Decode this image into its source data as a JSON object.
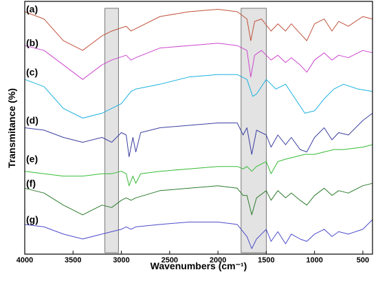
{
  "chart_data": {
    "type": "line",
    "xlabel": "Wavenumbers (cm⁻¹)",
    "ylabel": "Transmitance (%)",
    "xlim": [
      4000,
      400
    ],
    "x_reversed": true,
    "x_ticks": [
      4000,
      3500,
      3000,
      2500,
      2000,
      1500,
      1000,
      500
    ],
    "grid": false,
    "highlight_bands": [
      {
        "x_from": 3170,
        "x_to": 3030
      },
      {
        "x_from": 1760,
        "x_to": 1500
      }
    ],
    "y_units": "stacked, offset transmittance (no numeric scale shown)",
    "series": [
      {
        "name": "(a)",
        "color": "#c0503a",
        "baseline": 0.96,
        "points": [
          [
            4000,
            0.98
          ],
          [
            3800,
            0.95
          ],
          [
            3600,
            0.86
          ],
          [
            3400,
            0.82
          ],
          [
            3200,
            0.88
          ],
          [
            3100,
            0.9
          ],
          [
            2950,
            0.92
          ],
          [
            2900,
            0.9
          ],
          [
            2850,
            0.91
          ],
          [
            2600,
            0.96
          ],
          [
            2300,
            0.98
          ],
          [
            2000,
            0.99
          ],
          [
            1800,
            0.98
          ],
          [
            1700,
            0.95
          ],
          [
            1660,
            0.86
          ],
          [
            1620,
            0.94
          ],
          [
            1550,
            0.95
          ],
          [
            1450,
            0.9
          ],
          [
            1380,
            0.93
          ],
          [
            1300,
            0.9
          ],
          [
            1240,
            0.93
          ],
          [
            1150,
            0.89
          ],
          [
            1080,
            0.86
          ],
          [
            1000,
            0.93
          ],
          [
            900,
            0.95
          ],
          [
            820,
            0.9
          ],
          [
            750,
            0.94
          ],
          [
            650,
            0.92
          ],
          [
            500,
            0.96
          ],
          [
            400,
            0.95
          ]
        ]
      },
      {
        "name": "(b)",
        "color": "#cc44cc",
        "baseline": 0.82,
        "points": [
          [
            4000,
            0.84
          ],
          [
            3800,
            0.82
          ],
          [
            3600,
            0.76
          ],
          [
            3400,
            0.7
          ],
          [
            3200,
            0.76
          ],
          [
            3100,
            0.78
          ],
          [
            2950,
            0.8
          ],
          [
            2900,
            0.78
          ],
          [
            2850,
            0.79
          ],
          [
            2600,
            0.83
          ],
          [
            2300,
            0.84
          ],
          [
            2000,
            0.85
          ],
          [
            1800,
            0.84
          ],
          [
            1700,
            0.82
          ],
          [
            1660,
            0.71
          ],
          [
            1620,
            0.8
          ],
          [
            1550,
            0.82
          ],
          [
            1450,
            0.78
          ],
          [
            1380,
            0.8
          ],
          [
            1300,
            0.77
          ],
          [
            1240,
            0.79
          ],
          [
            1150,
            0.76
          ],
          [
            1080,
            0.73
          ],
          [
            1000,
            0.78
          ],
          [
            900,
            0.81
          ],
          [
            820,
            0.78
          ],
          [
            750,
            0.8
          ],
          [
            650,
            0.79
          ],
          [
            500,
            0.82
          ],
          [
            400,
            0.81
          ]
        ]
      },
      {
        "name": "(c)",
        "color": "#1ab0e0",
        "baseline": 0.7,
        "points": [
          [
            4000,
            0.7
          ],
          [
            3800,
            0.67
          ],
          [
            3600,
            0.58
          ],
          [
            3400,
            0.54
          ],
          [
            3200,
            0.56
          ],
          [
            3100,
            0.58
          ],
          [
            3000,
            0.6
          ],
          [
            2900,
            0.65
          ],
          [
            2850,
            0.66
          ],
          [
            2600,
            0.68
          ],
          [
            2300,
            0.71
          ],
          [
            2000,
            0.72
          ],
          [
            1800,
            0.72
          ],
          [
            1700,
            0.7
          ],
          [
            1640,
            0.63
          ],
          [
            1600,
            0.64
          ],
          [
            1500,
            0.7
          ],
          [
            1400,
            0.66
          ],
          [
            1300,
            0.68
          ],
          [
            1200,
            0.62
          ],
          [
            1100,
            0.56
          ],
          [
            1000,
            0.57
          ],
          [
            900,
            0.62
          ],
          [
            800,
            0.66
          ],
          [
            700,
            0.68
          ],
          [
            550,
            0.66
          ],
          [
            400,
            0.65
          ]
        ]
      },
      {
        "name": "(d)",
        "color": "#3a3ea0",
        "baseline": 0.5,
        "points": [
          [
            4000,
            0.5
          ],
          [
            3800,
            0.49
          ],
          [
            3600,
            0.46
          ],
          [
            3400,
            0.44
          ],
          [
            3200,
            0.46
          ],
          [
            3100,
            0.44
          ],
          [
            3000,
            0.48
          ],
          [
            2950,
            0.47
          ],
          [
            2920,
            0.38
          ],
          [
            2880,
            0.46
          ],
          [
            2850,
            0.4
          ],
          [
            2800,
            0.48
          ],
          [
            2600,
            0.5
          ],
          [
            2300,
            0.51
          ],
          [
            2000,
            0.52
          ],
          [
            1800,
            0.52
          ],
          [
            1740,
            0.47
          ],
          [
            1700,
            0.5
          ],
          [
            1650,
            0.39
          ],
          [
            1600,
            0.49
          ],
          [
            1500,
            0.47
          ],
          [
            1450,
            0.42
          ],
          [
            1380,
            0.47
          ],
          [
            1300,
            0.43
          ],
          [
            1240,
            0.46
          ],
          [
            1150,
            0.41
          ],
          [
            1080,
            0.4
          ],
          [
            1000,
            0.46
          ],
          [
            900,
            0.5
          ],
          [
            820,
            0.45
          ],
          [
            750,
            0.48
          ],
          [
            650,
            0.47
          ],
          [
            500,
            0.53
          ],
          [
            400,
            0.56
          ]
        ]
      },
      {
        "name": "(e)",
        "color": "#33bb33",
        "baseline": 0.34,
        "points": [
          [
            4000,
            0.32
          ],
          [
            3800,
            0.31
          ],
          [
            3600,
            0.3
          ],
          [
            3400,
            0.3
          ],
          [
            3200,
            0.31
          ],
          [
            3100,
            0.31
          ],
          [
            3000,
            0.32
          ],
          [
            2950,
            0.31
          ],
          [
            2920,
            0.26
          ],
          [
            2880,
            0.3
          ],
          [
            2850,
            0.27
          ],
          [
            2800,
            0.31
          ],
          [
            2600,
            0.32
          ],
          [
            2300,
            0.33
          ],
          [
            2000,
            0.34
          ],
          [
            1800,
            0.34
          ],
          [
            1740,
            0.33
          ],
          [
            1700,
            0.34
          ],
          [
            1650,
            0.32
          ],
          [
            1600,
            0.34
          ],
          [
            1500,
            0.36
          ],
          [
            1450,
            0.31
          ],
          [
            1380,
            0.36
          ],
          [
            1300,
            0.37
          ],
          [
            1200,
            0.38
          ],
          [
            1100,
            0.39
          ],
          [
            1000,
            0.39
          ],
          [
            900,
            0.4
          ],
          [
            800,
            0.41
          ],
          [
            700,
            0.41
          ],
          [
            500,
            0.42
          ],
          [
            400,
            0.43
          ]
        ]
      },
      {
        "name": "(f)",
        "color": "#2a7a2a",
        "baseline": 0.24,
        "points": [
          [
            4000,
            0.25
          ],
          [
            3800,
            0.23
          ],
          [
            3600,
            0.18
          ],
          [
            3400,
            0.14
          ],
          [
            3200,
            0.18
          ],
          [
            3100,
            0.17
          ],
          [
            3000,
            0.2
          ],
          [
            2950,
            0.21
          ],
          [
            2900,
            0.2
          ],
          [
            2850,
            0.21
          ],
          [
            2600,
            0.24
          ],
          [
            2300,
            0.25
          ],
          [
            2000,
            0.26
          ],
          [
            1800,
            0.25
          ],
          [
            1740,
            0.22
          ],
          [
            1700,
            0.22
          ],
          [
            1650,
            0.14
          ],
          [
            1600,
            0.21
          ],
          [
            1500,
            0.24
          ],
          [
            1450,
            0.2
          ],
          [
            1380,
            0.24
          ],
          [
            1300,
            0.21
          ],
          [
            1240,
            0.23
          ],
          [
            1150,
            0.2
          ],
          [
            1080,
            0.18
          ],
          [
            1000,
            0.22
          ],
          [
            900,
            0.25
          ],
          [
            820,
            0.22
          ],
          [
            750,
            0.24
          ],
          [
            650,
            0.23
          ],
          [
            500,
            0.26
          ],
          [
            400,
            0.27
          ]
        ]
      },
      {
        "name": "(g)",
        "color": "#4a4acc",
        "baseline": 0.09,
        "points": [
          [
            4000,
            0.1
          ],
          [
            3800,
            0.09
          ],
          [
            3600,
            0.06
          ],
          [
            3400,
            0.04
          ],
          [
            3200,
            0.06
          ],
          [
            3100,
            0.07
          ],
          [
            3000,
            0.08
          ],
          [
            2950,
            0.09
          ],
          [
            2900,
            0.08
          ],
          [
            2850,
            0.09
          ],
          [
            2600,
            0.1
          ],
          [
            2300,
            0.11
          ],
          [
            2000,
            0.11
          ],
          [
            1800,
            0.1
          ],
          [
            1740,
            0.07
          ],
          [
            1700,
            0.05
          ],
          [
            1650,
            0.0
          ],
          [
            1600,
            0.04
          ],
          [
            1500,
            0.08
          ],
          [
            1450,
            0.03
          ],
          [
            1380,
            0.07
          ],
          [
            1300,
            0.02
          ],
          [
            1240,
            0.06
          ],
          [
            1150,
            0.04
          ],
          [
            1080,
            0.03
          ],
          [
            1000,
            0.06
          ],
          [
            900,
            0.08
          ],
          [
            820,
            0.05
          ],
          [
            750,
            0.07
          ],
          [
            650,
            0.06
          ],
          [
            500,
            0.08
          ],
          [
            400,
            0.12
          ]
        ]
      }
    ]
  }
}
